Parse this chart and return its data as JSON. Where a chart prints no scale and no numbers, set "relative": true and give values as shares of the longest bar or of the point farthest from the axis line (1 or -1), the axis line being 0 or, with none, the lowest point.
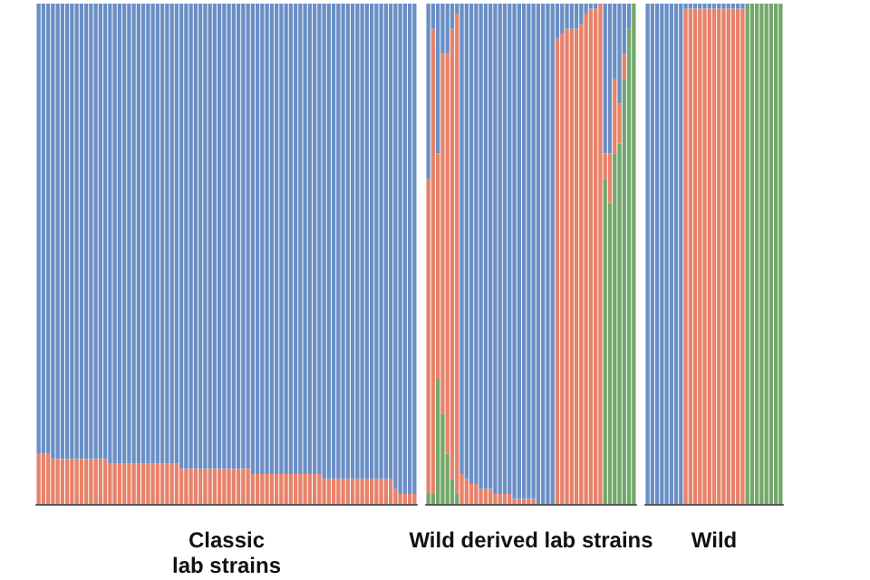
{
  "chart_data": [
    {
      "type": "bar",
      "stacked": true,
      "relative": true,
      "xlabel": "Classic\nlab strains",
      "categories": [
        null,
        null,
        null,
        null,
        null,
        null,
        null,
        null,
        null,
        null,
        null,
        null,
        null,
        null,
        null,
        null,
        null,
        null,
        null,
        null,
        null,
        null,
        null,
        null,
        null,
        null,
        null,
        null,
        null,
        null,
        null,
        null,
        null,
        null,
        null,
        null,
        null,
        null,
        null,
        null,
        null,
        null,
        null,
        null,
        null,
        null,
        null,
        null,
        null,
        null,
        null,
        null,
        null,
        null,
        null,
        null,
        null,
        null,
        null,
        null,
        null,
        null,
        null,
        null,
        null,
        null,
        null,
        null,
        null,
        null,
        null,
        null,
        null,
        null,
        null,
        null,
        null,
        null,
        null,
        null
      ],
      "series": [
        {
          "color": "#e8826a",
          "values": [
            0.1,
            0.1,
            0.1,
            0.09,
            0.09,
            0.09,
            0.09,
            0.09,
            0.09,
            0.09,
            0.09,
            0.09,
            0.09,
            0.09,
            0.09,
            0.08,
            0.08,
            0.08,
            0.08,
            0.08,
            0.08,
            0.08,
            0.08,
            0.08,
            0.08,
            0.08,
            0.08,
            0.08,
            0.08,
            0.08,
            0.07,
            0.07,
            0.07,
            0.07,
            0.07,
            0.07,
            0.07,
            0.07,
            0.07,
            0.07,
            0.07,
            0.07,
            0.07,
            0.07,
            0.07,
            0.06,
            0.06,
            0.06,
            0.06,
            0.06,
            0.06,
            0.06,
            0.06,
            0.06,
            0.06,
            0.06,
            0.06,
            0.06,
            0.06,
            0.06,
            0.05,
            0.05,
            0.05,
            0.05,
            0.05,
            0.05,
            0.05,
            0.05,
            0.05,
            0.05,
            0.05,
            0.05,
            0.05,
            0.05,
            0.05,
            0.03,
            0.02,
            0.02,
            0.02,
            0.02
          ]
        },
        {
          "color": "#6a8fc6",
          "values": [
            0.9,
            0.9,
            0.9,
            0.91,
            0.91,
            0.91,
            0.91,
            0.91,
            0.91,
            0.91,
            0.91,
            0.91,
            0.91,
            0.91,
            0.91,
            0.92,
            0.92,
            0.92,
            0.92,
            0.92,
            0.92,
            0.92,
            0.92,
            0.92,
            0.92,
            0.92,
            0.92,
            0.92,
            0.92,
            0.92,
            0.93,
            0.93,
            0.93,
            0.93,
            0.93,
            0.93,
            0.93,
            0.93,
            0.93,
            0.93,
            0.93,
            0.93,
            0.93,
            0.93,
            0.93,
            0.94,
            0.94,
            0.94,
            0.94,
            0.94,
            0.94,
            0.94,
            0.94,
            0.94,
            0.94,
            0.94,
            0.94,
            0.94,
            0.94,
            0.94,
            0.95,
            0.95,
            0.95,
            0.95,
            0.95,
            0.95,
            0.95,
            0.95,
            0.95,
            0.95,
            0.95,
            0.95,
            0.95,
            0.95,
            0.95,
            0.97,
            0.98,
            0.98,
            0.98,
            0.98
          ]
        }
      ]
    },
    {
      "type": "bar",
      "stacked": true,
      "relative": true,
      "xlabel": "Wild derived lab strains",
      "categories": [
        null,
        null,
        null,
        null,
        null,
        null,
        null,
        null,
        null,
        null,
        null,
        null,
        null,
        null,
        null,
        null,
        null,
        null,
        null,
        null,
        null,
        null,
        null,
        null,
        null,
        null,
        null,
        null,
        null,
        null,
        null,
        null,
        null,
        null,
        null,
        null,
        null,
        null,
        null,
        null,
        null,
        null,
        null,
        null
      ],
      "series": [
        {
          "color": "#72a86a",
          "values": [
            0.02,
            0.02,
            0.25,
            0.18,
            0.1,
            0.05,
            0.02,
            0,
            0,
            0,
            0,
            0,
            0,
            0,
            0,
            0,
            0,
            0,
            0,
            0,
            0,
            0,
            0,
            0,
            0,
            0,
            0,
            0,
            0,
            0,
            0,
            0,
            0,
            0,
            0,
            0,
            0,
            0.65,
            0.6,
            0.7,
            0.72,
            0.85,
            0.95,
            1
          ]
        },
        {
          "color": "#e8826a",
          "values": [
            0.63,
            0.93,
            0.45,
            0.72,
            0.8,
            0.9,
            0.96,
            0.06,
            0.05,
            0.04,
            0.04,
            0.03,
            0.03,
            0.03,
            0.02,
            0.02,
            0.02,
            0.02,
            0.01,
            0.01,
            0.01,
            0.01,
            0.01,
            0,
            0,
            0,
            0,
            0.93,
            0.94,
            0.95,
            0.95,
            0.95,
            0.96,
            0.98,
            0.99,
            0.99,
            1,
            0.05,
            0.1,
            0.15,
            0.08,
            0.05,
            0,
            0
          ]
        },
        {
          "color": "#6a8fc6",
          "values": [
            0.35,
            0.05,
            0.3,
            0.1,
            0.1,
            0.05,
            0.02,
            0.94,
            0.95,
            0.96,
            0.96,
            0.97,
            0.97,
            0.97,
            0.98,
            0.98,
            0.98,
            0.98,
            0.99,
            0.99,
            0.99,
            0.99,
            0.99,
            1,
            1,
            1,
            1,
            0.07,
            0.06,
            0.05,
            0.05,
            0.05,
            0.04,
            0.02,
            0.01,
            0.01,
            0,
            0.3,
            0.3,
            0.15,
            0.2,
            0.1,
            0.05,
            0
          ]
        }
      ]
    },
    {
      "type": "bar",
      "stacked": true,
      "relative": true,
      "xlabel": "Wild",
      "categories": [
        null,
        null,
        null,
        null,
        null,
        null,
        null,
        null,
        null,
        null,
        null,
        null,
        null,
        null,
        null,
        null,
        null,
        null,
        null,
        null,
        null,
        null,
        null,
        null,
        null,
        null,
        null,
        null,
        null
      ],
      "series": [
        {
          "color": "#72a86a",
          "values": [
            0,
            0,
            0,
            0,
            0,
            0,
            0,
            0,
            0,
            0,
            0,
            0,
            0,
            0,
            0,
            0,
            0,
            0,
            0,
            0,
            0,
            1,
            1,
            1,
            1,
            1,
            1,
            1,
            1
          ]
        },
        {
          "color": "#e8826a",
          "values": [
            0,
            0,
            0,
            0,
            0,
            0,
            0,
            0,
            0.99,
            0.99,
            0.99,
            0.99,
            0.99,
            0.99,
            0.99,
            0.99,
            0.99,
            0.99,
            0.99,
            0.99,
            0.99,
            0,
            0,
            0,
            0,
            0,
            0,
            0,
            0
          ]
        },
        {
          "color": "#6a8fc6",
          "values": [
            1,
            1,
            1,
            1,
            1,
            1,
            1,
            1,
            0.01,
            0.01,
            0.01,
            0.01,
            0.01,
            0.01,
            0.01,
            0.01,
            0.01,
            0.01,
            0.01,
            0.01,
            0.01,
            0,
            0,
            0,
            0,
            0,
            0,
            0,
            0
          ]
        }
      ]
    }
  ]
}
